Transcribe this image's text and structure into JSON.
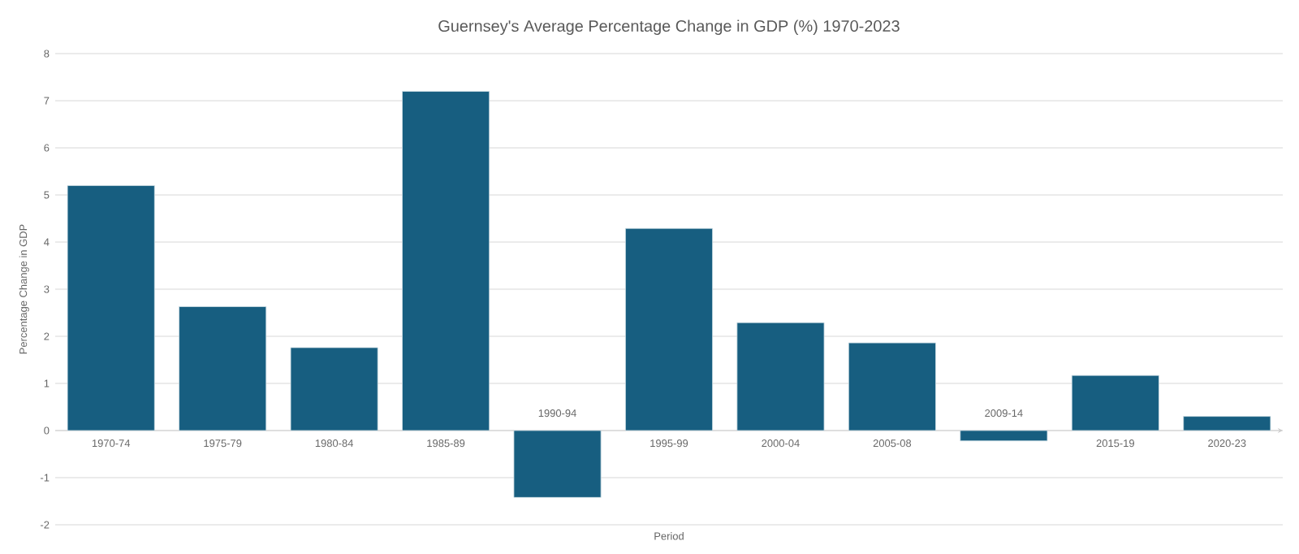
{
  "chart_data": {
    "type": "bar",
    "title": "Guernsey's Average Percentage Change in GDP (%) 1970-2023",
    "xlabel": "Period",
    "ylabel": "Percentage Change in GDP",
    "categories": [
      "1970-74",
      "1975-79",
      "1980-84",
      "1985-89",
      "1990-94",
      "1995-99",
      "2000-04",
      "2005-08",
      "2009-14",
      "2015-19",
      "2020-23"
    ],
    "values": [
      5.2,
      2.63,
      1.76,
      7.2,
      -1.42,
      4.29,
      2.29,
      1.86,
      -0.22,
      1.17,
      0.3
    ],
    "color": "#175e80",
    "ylim": [
      -2,
      8
    ],
    "yticks": [
      -2,
      -1,
      0,
      1,
      2,
      3,
      4,
      5,
      6,
      7,
      8
    ],
    "grid": "y"
  }
}
